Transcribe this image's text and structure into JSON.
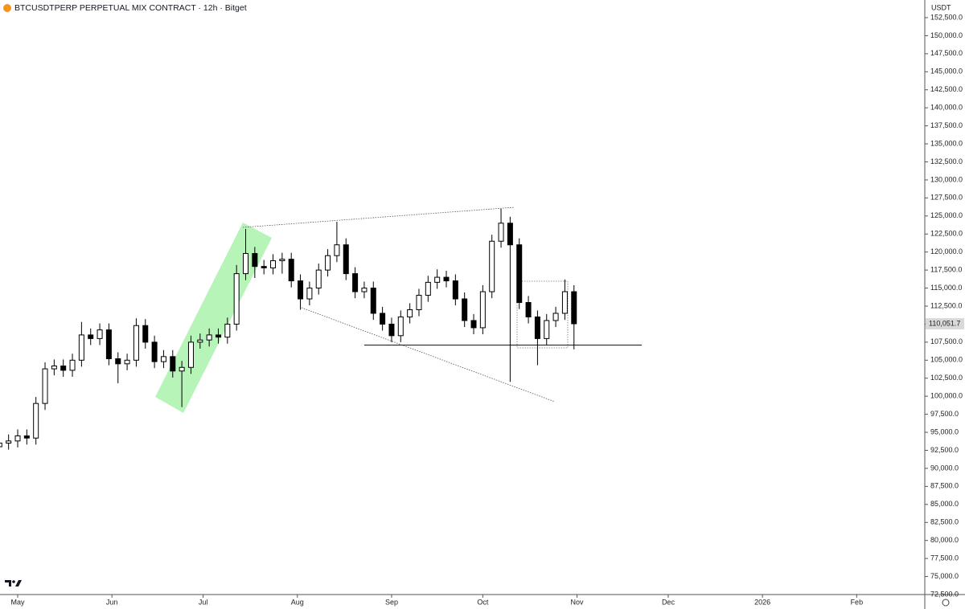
{
  "chart_data": {
    "type": "candlestick",
    "title": "BTCUSDTPERP PERPETUAL MIX CONTRACT · 12h · Bitget",
    "currency": "USDT",
    "up_color": "#ffffff",
    "down_color": "#000000",
    "wick_color": "#000000",
    "x": [
      -6,
      -3,
      0,
      3,
      6,
      9,
      12,
      15,
      18,
      21,
      24,
      27,
      30,
      33,
      36,
      39,
      42,
      45,
      48,
      51,
      54,
      57,
      60,
      63,
      66,
      69,
      72,
      75,
      78,
      81,
      84,
      87,
      90,
      93,
      96,
      99,
      102,
      105,
      108,
      111,
      114,
      117,
      120,
      123,
      126,
      129,
      132,
      135,
      138,
      141,
      144,
      147,
      150,
      153,
      156,
      159,
      162,
      165,
      168,
      171,
      174,
      177,
      180,
      183
    ],
    "open": [
      93000,
      93500,
      93800,
      94500,
      94200,
      99000,
      103800,
      104200,
      103600,
      105000,
      108500,
      108000,
      109200,
      105200,
      104500,
      105000,
      109800,
      107500,
      104800,
      105500,
      103500,
      104000,
      107500,
      107800,
      108500,
      108200,
      110000,
      117000,
      119800,
      118000,
      117800,
      118800,
      119000,
      116000,
      113500,
      115000,
      117500,
      119500,
      121000,
      117000,
      114500,
      115000,
      111500,
      110000,
      108400,
      111000,
      112000,
      114000,
      115800,
      116500,
      116000,
      113500,
      110500,
      109500,
      114500,
      121500,
      124000,
      121000,
      113000,
      111000,
      108000,
      110500,
      111500,
      114500
    ],
    "high": [
      94400,
      94700,
      95400,
      95400,
      99900,
      104700,
      105100,
      105100,
      105900,
      110300,
      109400,
      110100,
      110100,
      106100,
      105900,
      110800,
      110700,
      108400,
      106400,
      106400,
      104900,
      108400,
      108700,
      109400,
      109400,
      110900,
      118200,
      123200,
      120700,
      118900,
      119700,
      119900,
      119900,
      116900,
      115900,
      118400,
      120400,
      124200,
      121900,
      117900,
      115900,
      115900,
      112400,
      110900,
      111900,
      112900,
      114900,
      116700,
      117600,
      117400,
      116900,
      114400,
      111400,
      115400,
      122400,
      126000,
      124900,
      121900,
      113900,
      111900,
      111400,
      112400,
      116200,
      115400
    ],
    "low": [
      92400,
      92600,
      92900,
      93300,
      93300,
      98100,
      102900,
      102700,
      102700,
      104100,
      107100,
      107100,
      104300,
      101800,
      103600,
      104100,
      106600,
      103900,
      103900,
      102600,
      98500,
      103100,
      106600,
      106900,
      107300,
      107300,
      109100,
      116100,
      116400,
      116900,
      116900,
      117000,
      115100,
      112000,
      112600,
      114100,
      116600,
      118600,
      116100,
      113600,
      113600,
      110600,
      109100,
      107500,
      107500,
      110100,
      111100,
      113100,
      114900,
      115100,
      112600,
      109600,
      108600,
      108600,
      113600,
      120600,
      102000,
      112100,
      110100,
      104300,
      107100,
      109600,
      110600,
      106500
    ],
    "close": [
      93500,
      93800,
      94500,
      94200,
      99000,
      103800,
      104200,
      103600,
      105000,
      108500,
      108000,
      109200,
      105200,
      104500,
      105000,
      109800,
      107500,
      104800,
      105500,
      103500,
      104000,
      107500,
      107800,
      108500,
      108200,
      110000,
      117000,
      119800,
      118000,
      117800,
      118800,
      119000,
      116000,
      113500,
      115000,
      117500,
      119500,
      121000,
      117000,
      114500,
      115000,
      111500,
      110000,
      108400,
      111000,
      112000,
      114000,
      115800,
      116500,
      116000,
      113500,
      110500,
      109500,
      114500,
      121500,
      124000,
      121000,
      113000,
      111000,
      108000,
      110500,
      111500,
      114500,
      110051.7
    ],
    "last_price": {
      "value": 110051.7,
      "label": "110,051.7"
    },
    "hline": 107100,
    "xlim": [
      -5.82,
      298.4
    ],
    "ylim": [
      72500,
      154951
    ],
    "xticks": [
      {
        "value": 0,
        "label": "May"
      },
      {
        "value": 31,
        "label": "Jun"
      },
      {
        "value": 61,
        "label": "Jul"
      },
      {
        "value": 92,
        "label": "Aug"
      },
      {
        "value": 123,
        "label": "Sep"
      },
      {
        "value": 153,
        "label": "Oct"
      },
      {
        "value": 184,
        "label": "Nov"
      },
      {
        "value": 214,
        "label": "Dec"
      },
      {
        "value": 245,
        "label": "2026"
      },
      {
        "value": 276,
        "label": "Feb"
      }
    ],
    "yticks": [
      {
        "value": 72500,
        "label": "72,500.0"
      },
      {
        "value": 75000,
        "label": "75,000.0"
      },
      {
        "value": 77500,
        "label": "77,500.0"
      },
      {
        "value": 80000,
        "label": "80,000.0"
      },
      {
        "value": 82500,
        "label": "82,500.0"
      },
      {
        "value": 85000,
        "label": "85,000.0"
      },
      {
        "value": 87500,
        "label": "87,500.0"
      },
      {
        "value": 90000,
        "label": "90,000.0"
      },
      {
        "value": 92500,
        "label": "92,500.0"
      },
      {
        "value": 95000,
        "label": "95,000.0"
      },
      {
        "value": 97500,
        "label": "97,500.0"
      },
      {
        "value": 100000,
        "label": "100,000.0"
      },
      {
        "value": 102500,
        "label": "102,500.0"
      },
      {
        "value": 105000,
        "label": "105,000.0"
      },
      {
        "value": 107500,
        "label": "107,500.0"
      },
      {
        "value": 110000,
        "label": "110,000.0"
      },
      {
        "value": 112500,
        "label": "112,500.0"
      },
      {
        "value": 115000,
        "label": "115,000.0"
      },
      {
        "value": 117500,
        "label": "117,500.0"
      },
      {
        "value": 120000,
        "label": "120,000.0"
      },
      {
        "value": 122500,
        "label": "122,500.0"
      },
      {
        "value": 125000,
        "label": "125,000.0"
      },
      {
        "value": 127500,
        "label": "127,500.0"
      },
      {
        "value": 130000,
        "label": "130,000.0"
      },
      {
        "value": 132500,
        "label": "132,500.0"
      },
      {
        "value": 135000,
        "label": "135,000.0"
      },
      {
        "value": 137500,
        "label": "137,500.0"
      },
      {
        "value": 140000,
        "label": "140,000.0"
      },
      {
        "value": 142500,
        "label": "142,500.0"
      },
      {
        "value": 145000,
        "label": "145,000.0"
      },
      {
        "value": 147500,
        "label": "147,500.0"
      },
      {
        "value": 150000,
        "label": "150,000.0"
      },
      {
        "value": 152500,
        "label": "152,500.0"
      }
    ]
  }
}
